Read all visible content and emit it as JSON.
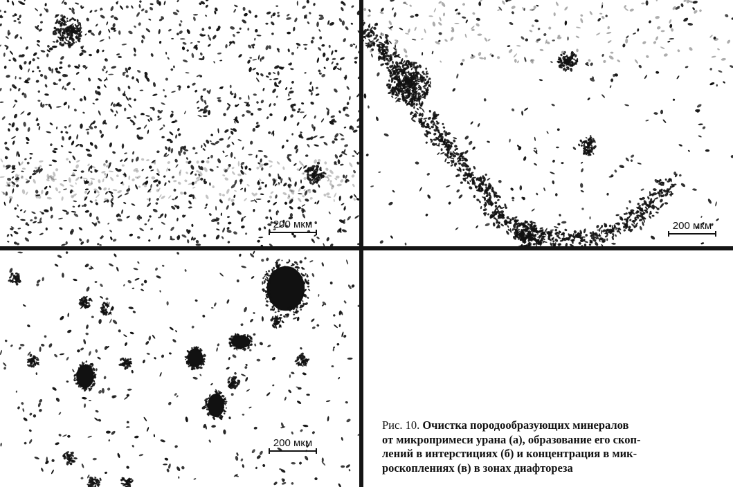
{
  "panels": [
    {
      "id": "a",
      "scale_label": "200 мкм"
    },
    {
      "id": "b",
      "scale_label": "200 мкм"
    },
    {
      "id": "c",
      "scale_label": "200 мкм"
    }
  ],
  "caption": {
    "prefix": "Рис. 10. ",
    "title_line1": "Очистка породообразующих минералов",
    "line2": "от микропримеси урана (а), образование его скоп-",
    "line3": "лений в интерстициях (б) и концентрация в мик-",
    "line4": "роскоплениях (в) в зонах диафтореза"
  },
  "colors": {
    "speckle": "#111111",
    "divider": "#151515",
    "background": "#ffffff"
  }
}
